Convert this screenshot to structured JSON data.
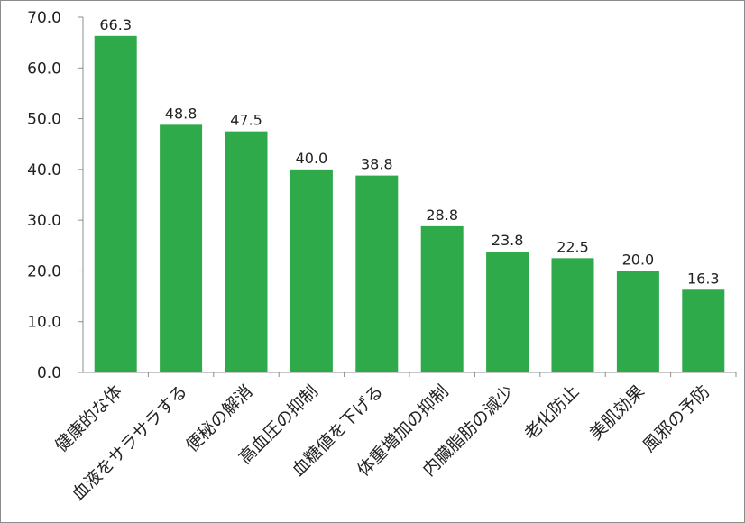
{
  "chart_data": {
    "type": "bar",
    "title": "",
    "xlabel": "",
    "ylabel": "",
    "categories": [
      "健康的な体",
      "血液をサラサラする",
      "便秘の解消",
      "高血圧の抑制",
      "血糖値を下げる",
      "体重増加の抑制",
      "内臓脂肪の減少",
      "老化防止",
      "美肌効果",
      "風邪の予防"
    ],
    "values": [
      66.3,
      48.8,
      47.5,
      40.0,
      38.8,
      28.8,
      23.8,
      22.5,
      20.0,
      16.3
    ],
    "value_labels": [
      "66.3",
      "48.8",
      "47.5",
      "40.0",
      "38.8",
      "28.8",
      "23.8",
      "22.5",
      "20.0",
      "16.3"
    ],
    "ylim": [
      0,
      70
    ],
    "yticks": [
      "0.0",
      "10.0",
      "20.0",
      "30.0",
      "40.0",
      "50.0",
      "60.0",
      "70.0"
    ],
    "grid": false,
    "legend": "none",
    "bar_color": "#2eaa4a"
  }
}
